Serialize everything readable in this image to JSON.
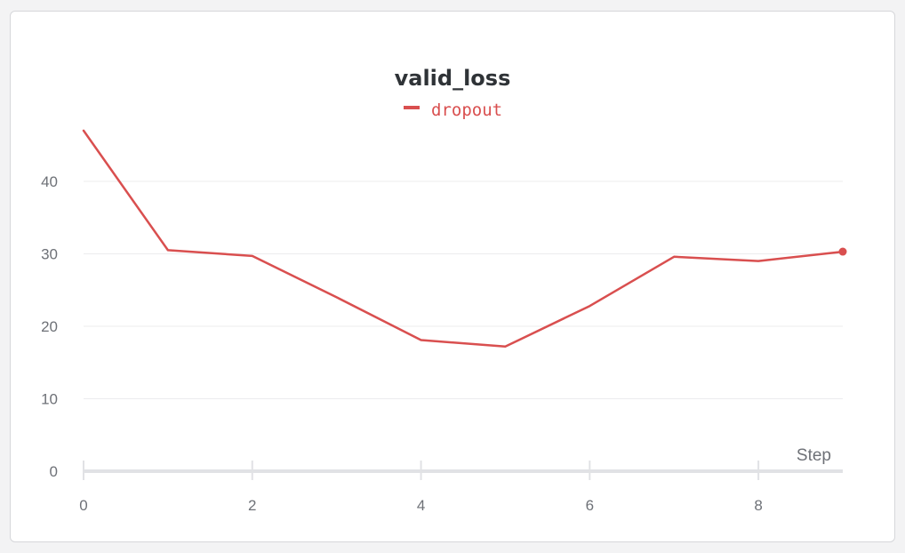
{
  "chart_data": {
    "type": "line",
    "title": "valid_loss",
    "xlabel": "Step",
    "ylabel": "",
    "xlim": [
      0,
      9
    ],
    "ylim": [
      0,
      50
    ],
    "x_ticks": [
      0,
      2,
      4,
      6,
      8
    ],
    "y_ticks": [
      0,
      10,
      20,
      30,
      40
    ],
    "grid": true,
    "legend_position": "top-center",
    "series": [
      {
        "name": "dropout",
        "color": "#d94f4f",
        "x": [
          0,
          1,
          2,
          3,
          4,
          5,
          6,
          7,
          8,
          9
        ],
        "y": [
          47.0,
          30.5,
          29.7,
          24.0,
          18.1,
          17.2,
          22.8,
          29.6,
          29.0,
          30.3
        ]
      }
    ]
  }
}
